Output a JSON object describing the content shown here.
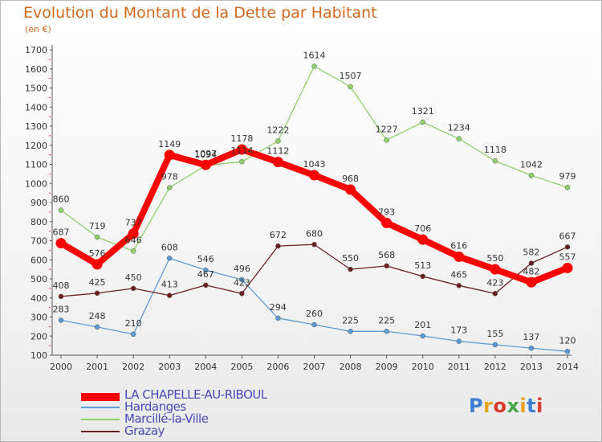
{
  "title": "Evolution du Montant de la Dette par Habitant",
  "subtitle": "(en €)",
  "logo": {
    "text": "Proxiti",
    "colors": [
      "#3a7fd1",
      "#e7a21b",
      "#d83a2a",
      "#4aa84a",
      "#e7a21b",
      "#3a7fd1",
      "#d83a2a"
    ]
  },
  "chart_data": {
    "type": "line",
    "x": [
      "2000",
      "2001",
      "2002",
      "2003",
      "2004",
      "2005",
      "2006",
      "2007",
      "2008",
      "2009",
      "2010",
      "2011",
      "2012",
      "2013",
      "2014"
    ],
    "ylim": [
      100,
      1700
    ],
    "yticks": [
      100,
      200,
      300,
      400,
      500,
      600,
      700,
      800,
      900,
      1000,
      1100,
      1200,
      1300,
      1400,
      1500,
      1600,
      1700
    ],
    "grid": false,
    "legend_position": "bottom-left",
    "series": [
      {
        "name": "LA CHAPELLE-AU-RIBOUL",
        "color": "#ff0000",
        "values": [
          687,
          576,
          737,
          1149,
          1097,
          1178,
          1112,
          1043,
          968,
          793,
          706,
          616,
          550,
          482,
          557
        ]
      },
      {
        "name": "Hardanges",
        "color": "#5b9bd5",
        "values": [
          283,
          248,
          210,
          608,
          546,
          496,
          294,
          260,
          225,
          225,
          201,
          173,
          155,
          137,
          120
        ]
      },
      {
        "name": "Marcillé-la-Ville",
        "color": "#8fd16a",
        "values": [
          860,
          719,
          646,
          978,
          1094,
          1114,
          1222,
          1614,
          1507,
          1227,
          1321,
          1234,
          1118,
          1042,
          979
        ]
      },
      {
        "name": "Grazay",
        "color": "#6b1f1f",
        "values": [
          408,
          425,
          450,
          413,
          467,
          423,
          672,
          680,
          550,
          568,
          513,
          465,
          423,
          582,
          667
        ]
      }
    ]
  }
}
